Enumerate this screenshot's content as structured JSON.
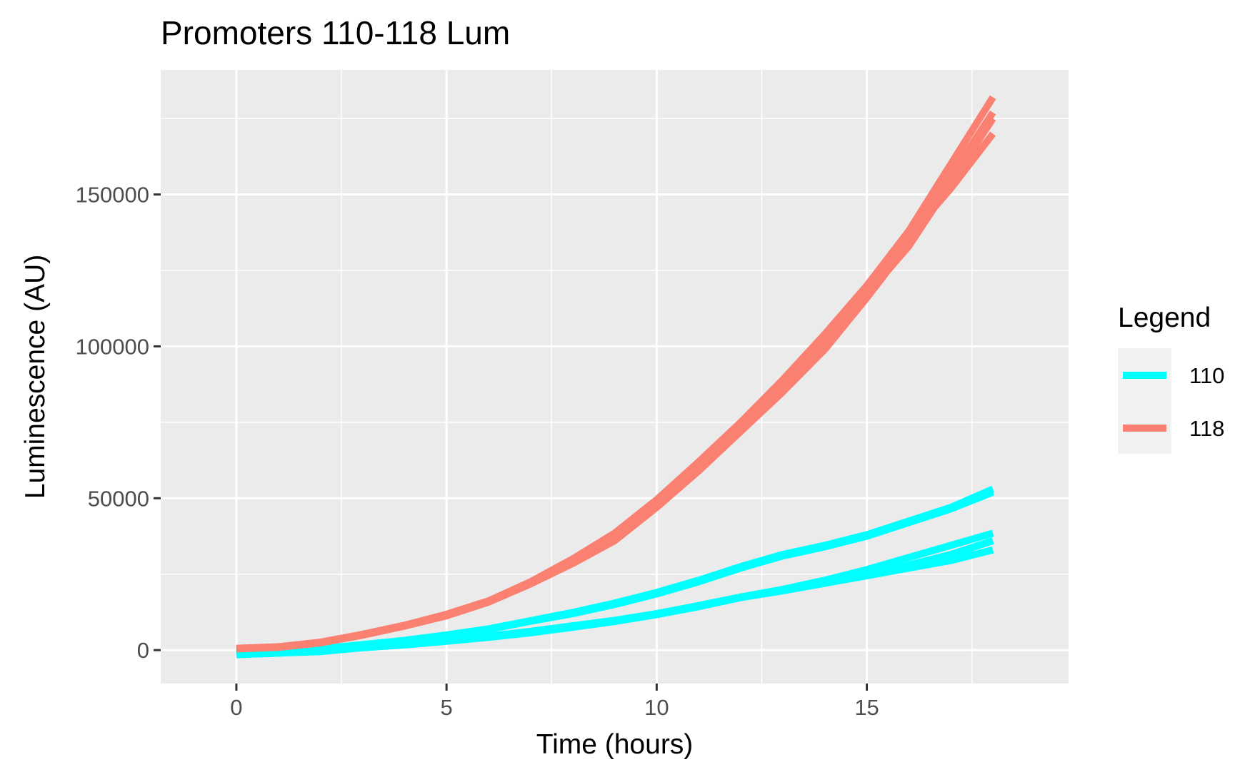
{
  "chart_data": {
    "type": "line",
    "title": "Promoters 110-118 Lum",
    "xlabel": "Time (hours)",
    "ylabel": "Luminescence (AU)",
    "xlim": [
      -1.8,
      19.8
    ],
    "ylim": [
      -11000,
      191000
    ],
    "x_ticks": [
      0,
      5,
      10,
      15
    ],
    "x_tick_labels": [
      "0",
      "5",
      "10",
      "15"
    ],
    "y_ticks": [
      0,
      50000,
      100000,
      150000
    ],
    "y_tick_labels": [
      "0",
      "50000",
      "100000",
      "150000"
    ],
    "grid": true,
    "legend": {
      "title": "Legend",
      "position": "right",
      "entries": [
        {
          "label": "110",
          "color": "#00FFFF"
        },
        {
          "label": "118",
          "color": "#FA8072"
        }
      ]
    },
    "x": [
      0,
      1,
      2,
      3,
      4,
      5,
      6,
      7,
      8,
      9,
      10,
      11,
      12,
      13,
      14,
      15,
      16,
      17,
      18
    ],
    "series": [
      {
        "group": "110",
        "color": "#00FFFF",
        "values": [
          -1200,
          -800,
          300,
          1500,
          3000,
          4800,
          6800,
          9500,
          12000,
          15000,
          18500,
          22500,
          27000,
          31000,
          34000,
          37500,
          42000,
          46500,
          52000
        ]
      },
      {
        "group": "110",
        "color": "#00FFFF",
        "values": [
          -1000,
          -500,
          500,
          1800,
          3200,
          5000,
          7000,
          9700,
          12400,
          15500,
          19000,
          23000,
          27500,
          31500,
          34500,
          38000,
          42500,
          47000,
          53000
        ]
      },
      {
        "group": "110",
        "color": "#00FFFF",
        "values": [
          -1500,
          -1000,
          -500,
          800,
          1800,
          3000,
          4500,
          6000,
          7700,
          9600,
          12000,
          14700,
          17500,
          20000,
          23000,
          26500,
          30500,
          34500,
          38500
        ]
      },
      {
        "group": "110",
        "color": "#00FFFF",
        "values": [
          -1200,
          -900,
          -200,
          1000,
          2000,
          3200,
          4600,
          6200,
          8000,
          9800,
          12000,
          14600,
          17300,
          20000,
          22700,
          25000,
          28000,
          31500,
          36000
        ]
      },
      {
        "group": "110",
        "color": "#00FFFF",
        "values": [
          -1300,
          -1000,
          -300,
          800,
          1700,
          2900,
          4200,
          5700,
          7500,
          9400,
          11700,
          14300,
          17300,
          19500,
          22000,
          24500,
          27000,
          29500,
          33000
        ]
      },
      {
        "group": "118",
        "color": "#FA8072",
        "values": [
          500,
          1000,
          2500,
          5000,
          8000,
          11500,
          16000,
          22000,
          29000,
          37000,
          48000,
          60000,
          72000,
          85000,
          99000,
          116000,
          134000,
          156000,
          177000
        ]
      },
      {
        "group": "118",
        "color": "#FA8072",
        "values": [
          600,
          1100,
          2600,
          5200,
          8200,
          11800,
          16200,
          22500,
          30000,
          38500,
          49500,
          62000,
          75000,
          89000,
          104000,
          120000,
          138000,
          160000,
          182000
        ]
      },
      {
        "group": "118",
        "color": "#FA8072",
        "values": [
          400,
          900,
          2400,
          4900,
          7900,
          11300,
          15800,
          21800,
          28500,
          36000,
          47000,
          59000,
          72000,
          86000,
          101000,
          117000,
          133000,
          154000,
          175000
        ]
      },
      {
        "group": "118",
        "color": "#FA8072",
        "values": [
          500,
          1000,
          2500,
          5000,
          8100,
          11600,
          16100,
          22300,
          29500,
          37500,
          48500,
          61000,
          74000,
          88000,
          103000,
          119000,
          136000,
          152000,
          170000
        ]
      }
    ]
  }
}
